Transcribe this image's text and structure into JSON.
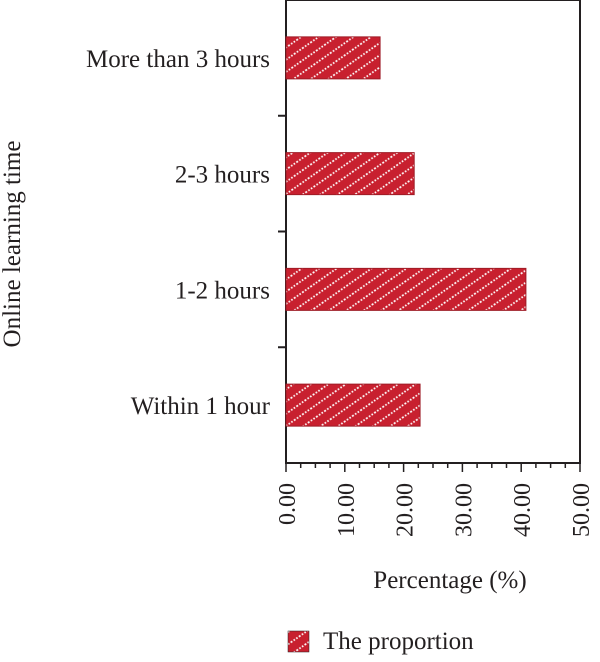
{
  "chart_data": {
    "type": "bar",
    "orientation": "horizontal",
    "categories": [
      "More than 3 hours",
      "2-3 hours",
      "1-2 hours",
      "Within 1 hour"
    ],
    "series": [
      {
        "name": "The proportion",
        "values": [
          16.0,
          21.8,
          40.8,
          22.8
        ]
      }
    ],
    "xlabel": "Percentage (%)",
    "ylabel": "Online learning time",
    "xlim": [
      0,
      50
    ],
    "xticks": [
      "0.00",
      "10.00",
      "20.00",
      "30.00",
      "40.00",
      "50.00"
    ],
    "grid": false,
    "legend_position": "bottom",
    "bar_color": "#c8202f",
    "bar_pattern": "white diagonal dotted hatch"
  }
}
